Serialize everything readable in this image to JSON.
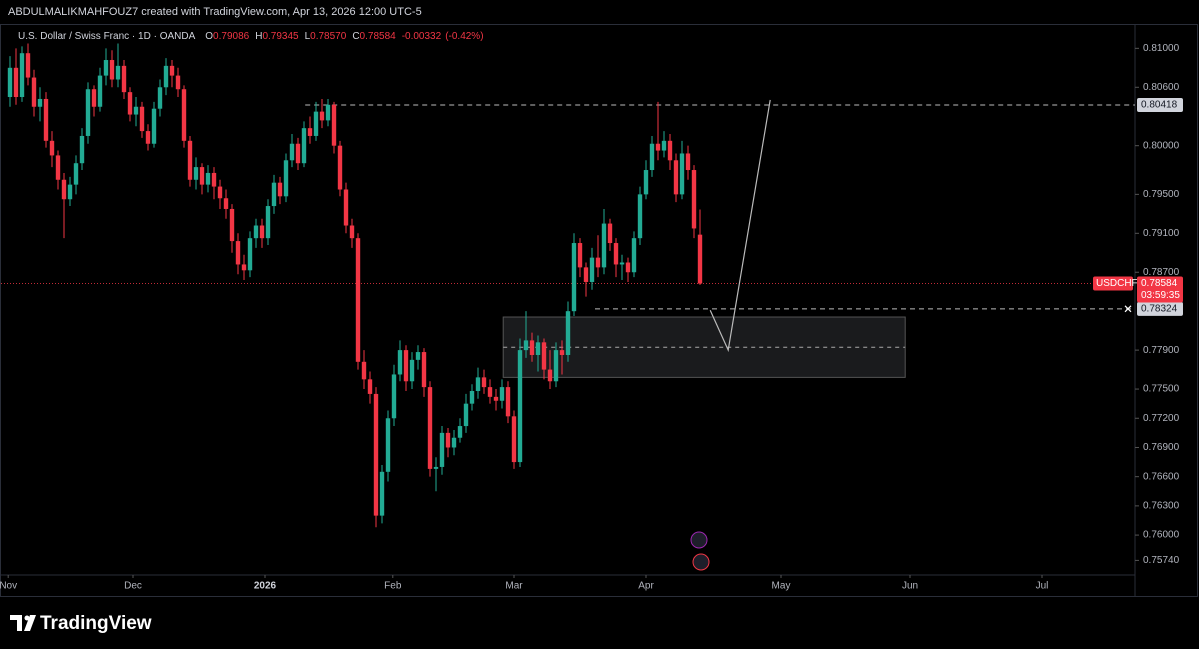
{
  "header": {
    "credit": "ABDULMALIKMAHFOUZ7 created with TradingView.com, Apr 13, 2026 12:00 UTC-5"
  },
  "footer": {
    "brand": "TradingView"
  },
  "chart_data": {
    "type": "candlestick",
    "title": "U.S. Dollar / Swiss Franc · 1D · OANDA",
    "ohlc": [
      {
        "label": "O",
        "value": 0.79086
      },
      {
        "label": "H",
        "value": 0.79345
      },
      {
        "label": "L",
        "value": 0.7857
      },
      {
        "label": "C",
        "value": 0.78584
      }
    ],
    "ohlc_labels": [
      "0.79086",
      "0.79345",
      "0.78570",
      "0.78584"
    ],
    "change": -0.00332,
    "change_pct": {
      "value": -0.42,
      "label": "(-0.42%)"
    },
    "up_color": "#22ab94",
    "down_color": "#f23645",
    "open": [
      0.805,
      0.808,
      0.805,
      0.8095,
      0.807,
      0.804,
      0.8048,
      0.8005,
      0.799,
      0.7965,
      0.7945,
      0.796,
      0.7982,
      0.801,
      0.8058,
      0.804,
      0.8072,
      0.8088,
      0.8068,
      0.8082,
      0.8055,
      0.8032,
      0.804,
      0.8015,
      0.8002,
      0.8038,
      0.806,
      0.8082,
      0.8072,
      0.8058,
      0.8005,
      0.7965,
      0.7978,
      0.796,
      0.7972,
      0.7958,
      0.7946,
      0.7935,
      0.7902,
      0.7878,
      0.7872,
      0.7905,
      0.7918,
      0.7905,
      0.7938,
      0.7962,
      0.7948,
      0.7985,
      0.8002,
      0.7982,
      0.8018,
      0.801,
      0.8035,
      0.8026,
      0.8042,
      0.8,
      0.7955,
      0.7918,
      0.7905,
      0.7778,
      0.776,
      0.7745,
      0.762,
      0.7665,
      0.772,
      0.7765,
      0.779,
      0.7758,
      0.778,
      0.7788,
      0.7752,
      0.7668,
      0.767,
      0.7705,
      0.769,
      0.77,
      0.7712,
      0.7735,
      0.7748,
      0.7762,
      0.7752,
      0.7742,
      0.7738,
      0.7752,
      0.7722,
      0.7675,
      0.779,
      0.78,
      0.7785,
      0.7798,
      0.777,
      0.7758,
      0.779,
      0.7785,
      0.783,
      0.79,
      0.7875,
      0.786,
      0.7885,
      0.7875,
      0.792,
      0.79,
      0.7878,
      0.788,
      0.787,
      0.7905,
      0.795,
      0.7975,
      0.8002,
      0.7995,
      0.8005,
      0.7985,
      0.795,
      0.7992,
      0.7975,
      0.79086
    ],
    "high": [
      0.8092,
      0.81,
      0.8102,
      0.8105,
      0.8078,
      0.806,
      0.8055,
      0.8015,
      0.7995,
      0.7972,
      0.7968,
      0.799,
      0.8018,
      0.8065,
      0.8062,
      0.808,
      0.81,
      0.8098,
      0.8105,
      0.8088,
      0.806,
      0.805,
      0.8045,
      0.8022,
      0.8045,
      0.8068,
      0.809,
      0.8088,
      0.808,
      0.8062,
      0.801,
      0.7988,
      0.7982,
      0.798,
      0.7978,
      0.7965,
      0.7955,
      0.794,
      0.791,
      0.7888,
      0.7912,
      0.7925,
      0.7925,
      0.7945,
      0.797,
      0.7968,
      0.7992,
      0.8012,
      0.8008,
      0.8025,
      0.803,
      0.8045,
      0.8048,
      0.8048,
      0.8045,
      0.8005,
      0.7962,
      0.7925,
      0.791,
      0.779,
      0.7768,
      0.7752,
      0.7672,
      0.7728,
      0.7775,
      0.78,
      0.7795,
      0.7788,
      0.7795,
      0.7792,
      0.7758,
      0.768,
      0.7712,
      0.771,
      0.7708,
      0.772,
      0.7745,
      0.7755,
      0.7772,
      0.777,
      0.776,
      0.775,
      0.776,
      0.7758,
      0.7728,
      0.7802,
      0.783,
      0.7808,
      0.7805,
      0.7802,
      0.779,
      0.7798,
      0.78,
      0.784,
      0.791,
      0.7905,
      0.788,
      0.7895,
      0.7908,
      0.7935,
      0.7925,
      0.7905,
      0.7888,
      0.7885,
      0.7912,
      0.7958,
      0.7985,
      0.801,
      0.8045,
      0.8015,
      0.8012,
      0.7992,
      0.8005,
      0.8,
      0.798,
      0.79345
    ],
    "low": [
      0.804,
      0.8042,
      0.8045,
      0.8062,
      0.803,
      0.8025,
      0.7998,
      0.7978,
      0.7955,
      0.7905,
      0.7938,
      0.795,
      0.7975,
      0.8002,
      0.803,
      0.8035,
      0.8062,
      0.806,
      0.806,
      0.8048,
      0.8025,
      0.802,
      0.8008,
      0.7995,
      0.7998,
      0.803,
      0.8052,
      0.806,
      0.805,
      0.7998,
      0.7958,
      0.7955,
      0.795,
      0.7952,
      0.7945,
      0.7935,
      0.7925,
      0.789,
      0.7868,
      0.7862,
      0.7865,
      0.7895,
      0.7895,
      0.7898,
      0.793,
      0.794,
      0.7942,
      0.7978,
      0.7975,
      0.7978,
      0.8002,
      0.8005,
      0.8018,
      0.802,
      0.7992,
      0.7948,
      0.791,
      0.7895,
      0.777,
      0.775,
      0.7735,
      0.7608,
      0.7612,
      0.7655,
      0.7712,
      0.7758,
      0.7748,
      0.775,
      0.777,
      0.7742,
      0.766,
      0.7645,
      0.7662,
      0.768,
      0.7682,
      0.7695,
      0.7705,
      0.7728,
      0.774,
      0.7745,
      0.7735,
      0.7728,
      0.773,
      0.7715,
      0.7668,
      0.767,
      0.7782,
      0.7778,
      0.7768,
      0.776,
      0.775,
      0.7752,
      0.7765,
      0.7778,
      0.7825,
      0.7865,
      0.7845,
      0.7852,
      0.7865,
      0.7868,
      0.7892,
      0.7865,
      0.7862,
      0.786,
      0.7865,
      0.7898,
      0.7945,
      0.7968,
      0.7985,
      0.7988,
      0.7975,
      0.7942,
      0.7945,
      0.7965,
      0.7905,
      0.7857
    ],
    "close": [
      0.808,
      0.805,
      0.8095,
      0.807,
      0.804,
      0.8048,
      0.8005,
      0.799,
      0.7965,
      0.7945,
      0.796,
      0.7982,
      0.801,
      0.8058,
      0.804,
      0.8072,
      0.8088,
      0.8068,
      0.8082,
      0.8055,
      0.8032,
      0.804,
      0.8015,
      0.8002,
      0.8038,
      0.806,
      0.8082,
      0.8072,
      0.8058,
      0.8005,
      0.7965,
      0.7978,
      0.796,
      0.7972,
      0.7958,
      0.7946,
      0.7935,
      0.7902,
      0.7878,
      0.7872,
      0.7905,
      0.7918,
      0.7905,
      0.7938,
      0.7962,
      0.7948,
      0.7985,
      0.8002,
      0.7982,
      0.8018,
      0.801,
      0.8035,
      0.8026,
      0.8042,
      0.8,
      0.7955,
      0.7918,
      0.7905,
      0.7778,
      0.776,
      0.7745,
      0.762,
      0.7665,
      0.772,
      0.7765,
      0.779,
      0.7758,
      0.778,
      0.7788,
      0.7752,
      0.7668,
      0.767,
      0.7705,
      0.769,
      0.77,
      0.7712,
      0.7735,
      0.7748,
      0.7762,
      0.7752,
      0.7742,
      0.7738,
      0.7752,
      0.7722,
      0.7675,
      0.779,
      0.78,
      0.7785,
      0.7798,
      0.777,
      0.7758,
      0.779,
      0.7785,
      0.783,
      0.79,
      0.7875,
      0.786,
      0.7885,
      0.7875,
      0.792,
      0.79,
      0.7878,
      0.788,
      0.787,
      0.7905,
      0.795,
      0.7975,
      0.8002,
      0.7995,
      0.8005,
      0.7985,
      0.795,
      0.7992,
      0.7975,
      0.7915,
      0.78584
    ],
    "xlim": [
      -1.5,
      187.5
    ],
    "xticks": [
      {
        "value": -0.3,
        "label": "Nov"
      },
      {
        "value": 20.5,
        "label": "Dec"
      },
      {
        "value": 42.5,
        "label": "2026"
      },
      {
        "value": 63.8,
        "label": "Feb"
      },
      {
        "value": 84,
        "label": "Mar"
      },
      {
        "value": 106,
        "label": "Apr"
      },
      {
        "value": 128.5,
        "label": "May"
      },
      {
        "value": 150,
        "label": "Jun"
      },
      {
        "value": 172,
        "label": "Jul"
      }
    ],
    "ylim": [
      0.7559,
      0.8125
    ],
    "yticks": [
      {
        "value": 0.81,
        "label": "0.81000"
      },
      {
        "value": 0.806,
        "label": "0.80600"
      },
      {
        "value": 0.8,
        "label": "0.80000"
      },
      {
        "value": 0.795,
        "label": "0.79500"
      },
      {
        "value": 0.791,
        "label": "0.79100"
      },
      {
        "value": 0.787,
        "label": "0.78700"
      },
      {
        "value": 0.779,
        "label": "0.77900"
      },
      {
        "value": 0.775,
        "label": "0.77500"
      },
      {
        "value": 0.772,
        "label": "0.77200"
      },
      {
        "value": 0.769,
        "label": "0.76900"
      },
      {
        "value": 0.766,
        "label": "0.76600"
      },
      {
        "value": 0.763,
        "label": "0.76300"
      },
      {
        "value": 0.76,
        "label": "0.76000"
      },
      {
        "value": 0.7574,
        "label": "0.75740"
      }
    ],
    "levels": [
      {
        "price": 0.80418,
        "start": 49.2
      },
      {
        "price": 0.78324,
        "start": 97.5
      }
    ],
    "zone": {
      "top": 0.7824,
      "bottom": 0.7762,
      "mid": 0.7793,
      "start": 82.2,
      "end": 149.2
    },
    "arrow": {
      "x": [
        116.7,
        119.7,
        126.7
      ],
      "y": [
        0.7831,
        0.779,
        0.8047
      ]
    },
    "last_price": {
      "symbol": "USDCHF",
      "price": 0.78584,
      "countdown": "03:59:35"
    }
  }
}
